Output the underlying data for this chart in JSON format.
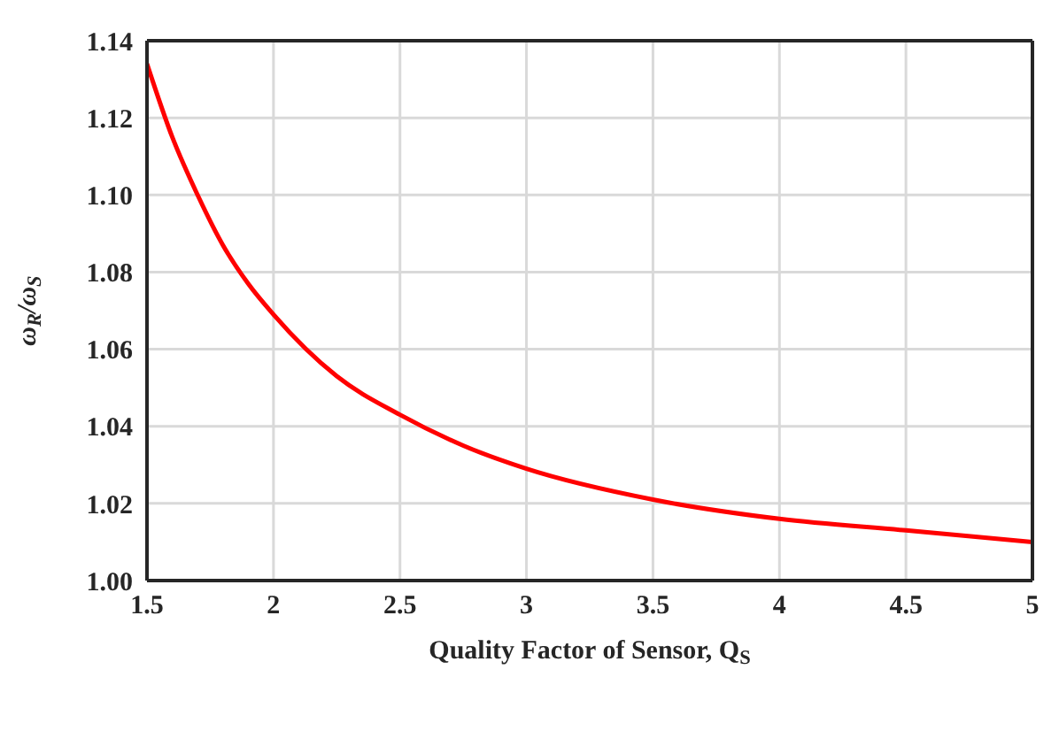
{
  "chart_data": {
    "type": "line",
    "xlabel": "Quality Factor of Sensor, Q$_{S}$",
    "ylabel": "ω$_{R}$/ω$_{S}$",
    "x": [
      1.5,
      1.6,
      1.7,
      1.8,
      1.9,
      2,
      2.25,
      2.5,
      2.75,
      3,
      3.5,
      4,
      4.5,
      5
    ],
    "series": [
      {
        "color": "#ff0000",
        "values": [
          1.134,
          1.115,
          1.1,
          1.087,
          1.077,
          1.069,
          1.053,
          1.043,
          1.035,
          1.029,
          1.021,
          1.016,
          1.013,
          1.01
        ]
      }
    ],
    "xlim": [
      1.5,
      5
    ],
    "xticks": [
      1.5,
      2,
      2.5,
      3,
      3.5,
      4,
      4.5,
      5
    ],
    "ylim": [
      1,
      1.14
    ],
    "yticks": [
      {
        "value": 1,
        "label": "1.00"
      },
      {
        "value": 1.02,
        "label": "1.02"
      },
      {
        "value": 1.04,
        "label": "1.04"
      },
      {
        "value": 1.06,
        "label": "1.06"
      },
      {
        "value": 1.08,
        "label": "1.08"
      },
      {
        "value": 1.1,
        "label": "1.10"
      },
      {
        "value": 1.12,
        "label": "1.12"
      },
      {
        "value": 1.14,
        "label": "1.14"
      }
    ],
    "grid": true,
    "legend": false,
    "marker": "none",
    "line_style": "solid"
  }
}
